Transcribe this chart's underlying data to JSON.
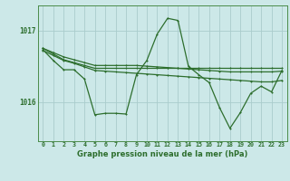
{
  "title": "Graphe pression niveau de la mer (hPa)",
  "bg_color": "#cce8e8",
  "grid_color": "#aacccc",
  "line_color": "#2d6e2d",
  "x_ticks": [
    0,
    1,
    2,
    3,
    4,
    5,
    6,
    7,
    8,
    9,
    10,
    11,
    12,
    13,
    14,
    15,
    16,
    17,
    18,
    19,
    20,
    21,
    22,
    23
  ],
  "ylim_top": 1017.35,
  "ylim_bottom": 1015.45,
  "y_ticks": [
    1016,
    1017
  ],
  "series_flat1": [
    1016.75,
    1016.67,
    1016.59,
    1016.55,
    1016.51,
    1016.47,
    1016.47,
    1016.47,
    1016.47,
    1016.47,
    1016.47,
    1016.47,
    1016.47,
    1016.47,
    1016.47,
    1016.47,
    1016.47,
    1016.47,
    1016.47,
    1016.47,
    1016.47,
    1016.47,
    1016.47,
    1016.47
  ],
  "series_flat2": [
    1016.75,
    1016.69,
    1016.63,
    1016.59,
    1016.55,
    1016.51,
    1016.51,
    1016.51,
    1016.51,
    1016.51,
    1016.5,
    1016.49,
    1016.48,
    1016.47,
    1016.46,
    1016.45,
    1016.44,
    1016.43,
    1016.42,
    1016.42,
    1016.42,
    1016.42,
    1016.42,
    1016.43
  ],
  "series_flat3": [
    1016.72,
    1016.65,
    1016.58,
    1016.54,
    1016.49,
    1016.44,
    1016.43,
    1016.42,
    1016.41,
    1016.4,
    1016.39,
    1016.38,
    1016.37,
    1016.36,
    1016.35,
    1016.34,
    1016.33,
    1016.32,
    1016.31,
    1016.3,
    1016.29,
    1016.28,
    1016.28,
    1016.3
  ],
  "series_main": [
    1016.73,
    1016.58,
    1016.45,
    1016.45,
    1016.32,
    1015.82,
    1015.84,
    1015.84,
    1015.83,
    1016.38,
    1016.58,
    1016.95,
    1017.17,
    1017.14,
    1016.5,
    1016.38,
    1016.27,
    1015.92,
    1015.63,
    1015.85,
    1016.12,
    1016.22,
    1016.14,
    1016.44
  ]
}
